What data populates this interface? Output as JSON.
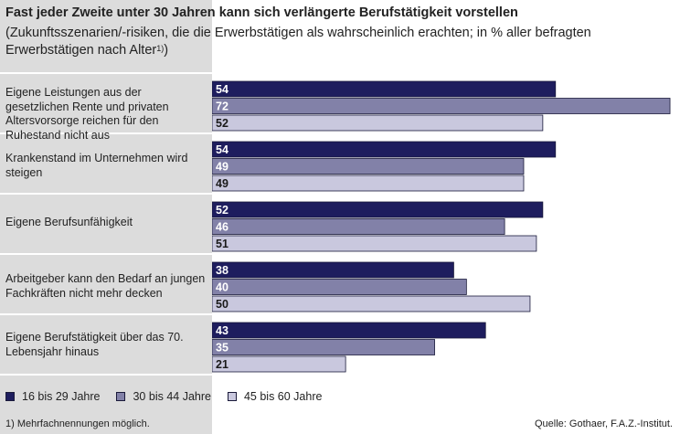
{
  "title": "Fast jeder Zweite unter 30 Jahren kann sich verlängerte Berufstätigkeit vorstellen",
  "subtitle": "(Zukunftsszenarien/-risiken, die die Erwerbstätigen als wahrscheinlich erachten; in % aller befragten Erwerbstätigen nach Alter",
  "subtitle_sup": "1)",
  "subtitle_end": ")",
  "footnote": "1)  Mehrfachnennungen möglich.",
  "source": "Quelle: Gothaer, F.A.Z.-Institut.",
  "colors": {
    "background": "#dcdcdc",
    "series_16_29": "#1e1d5e",
    "series_30_44": "#8281a8",
    "series_45_60": "#c9c8de"
  },
  "chart_data": {
    "type": "bar",
    "orientation": "horizontal",
    "categories": [
      "Eigene Leistungen aus der gesetzlichen Rente und privaten Altersvorsorge reichen für den Ruhestand nicht aus",
      "Krankenstand im Unternehmen wird steigen",
      "Eigene Berufsunfähigkeit",
      "Arbeitgeber kann den Bedarf an jungen Fachkräften nicht mehr decken",
      "Eigene Berufstätigkeit über das 70. Lebensjahr hinaus"
    ],
    "series": [
      {
        "name": "16 bis 29 Jahre",
        "values": [
          54,
          54,
          52,
          38,
          43
        ]
      },
      {
        "name": "30 bis 44 Jahre",
        "values": [
          72,
          49,
          46,
          40,
          35
        ]
      },
      {
        "name": "45 bis 60 Jahre",
        "values": [
          52,
          49,
          51,
          50,
          21
        ]
      }
    ],
    "xlim": [
      0,
      73
    ],
    "grid": false,
    "legend_position": "bottom-left"
  }
}
